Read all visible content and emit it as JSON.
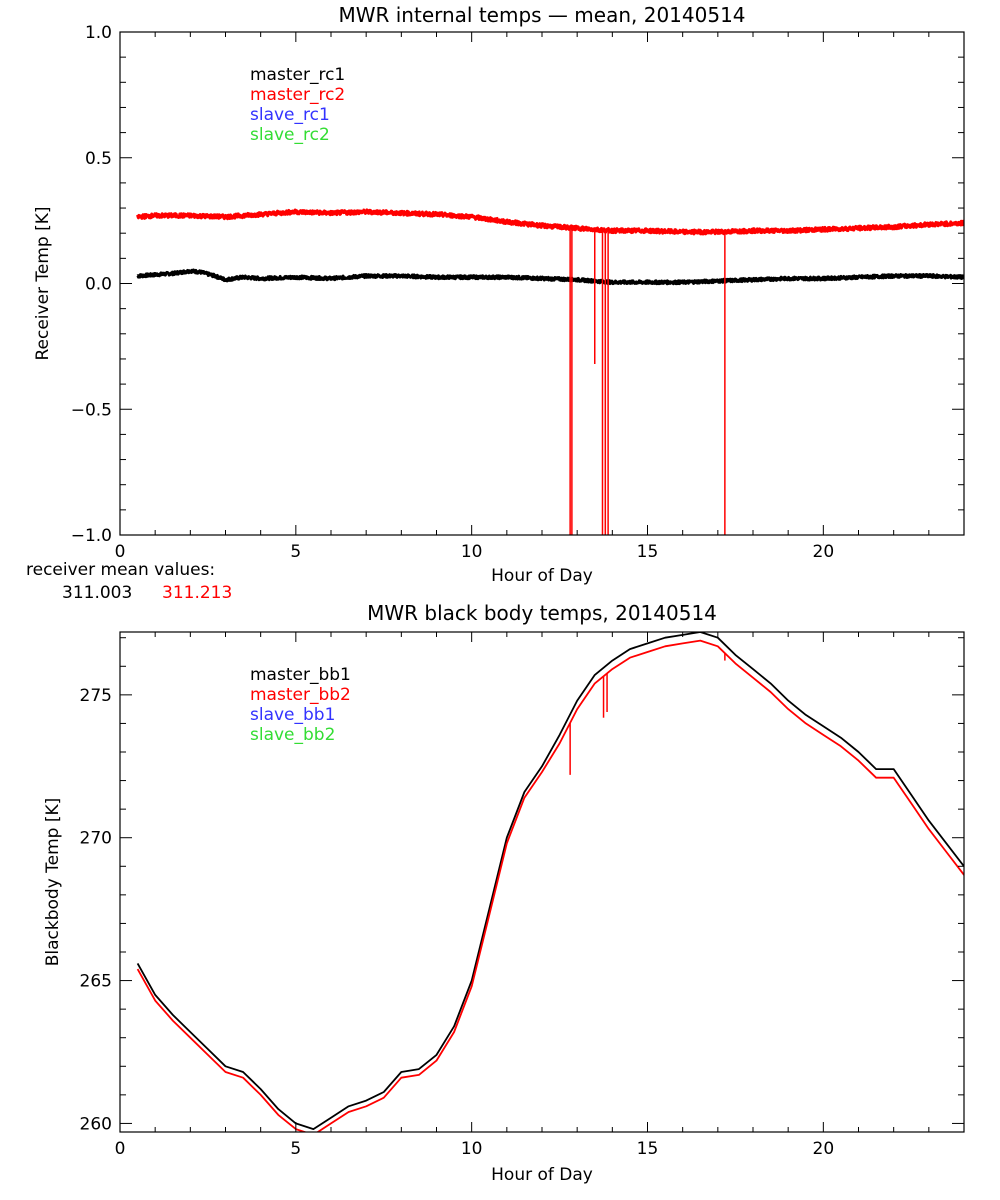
{
  "colors": {
    "black": "#000000",
    "red": "#ff0000",
    "blue": "#3333ff",
    "green": "#33dd33"
  },
  "receiver_note": {
    "label": "receiver mean values:",
    "values": [
      {
        "text": "311.003",
        "color": "#000000"
      },
      {
        "text": "311.213",
        "color": "#ff0000"
      }
    ]
  },
  "chart_data": [
    {
      "type": "line",
      "title": "MWR internal temps — mean, 20140514",
      "xlabel": "Hour of Day",
      "ylabel": "Receiver Temp [K]",
      "xlim": [
        0,
        24
      ],
      "ylim": [
        -1.0,
        1.0
      ],
      "x_ticks": [
        0,
        5,
        10,
        15,
        20
      ],
      "y_ticks": [
        -1.0,
        -0.5,
        0.0,
        0.5,
        1.0
      ],
      "y_tick_labels": [
        "−1.0",
        "−0.5",
        "0.0",
        "0.5",
        "1.0"
      ],
      "grid": false,
      "legend_position": "top-left",
      "legend": [
        {
          "label": "master_rc1",
          "color": "#000000"
        },
        {
          "label": "master_rc2",
          "color": "#ff0000"
        },
        {
          "label": "slave_rc1",
          "color": "#3333ff"
        },
        {
          "label": "slave_rc2",
          "color": "#33dd33"
        }
      ],
      "series": [
        {
          "name": "master_rc1",
          "color": "#000000",
          "x": [
            0.5,
            1.0,
            1.5,
            2.0,
            2.3,
            2.7,
            3.0,
            3.5,
            4.0,
            5.0,
            6.0,
            7.0,
            8.0,
            9.0,
            10.0,
            11.0,
            12.0,
            13.0,
            14.0,
            15.0,
            16.0,
            17.0,
            18.0,
            19.0,
            20.0,
            21.0,
            22.0,
            23.0,
            24.0
          ],
          "y": [
            0.03,
            0.035,
            0.04,
            0.05,
            0.045,
            0.03,
            0.015,
            0.025,
            0.02,
            0.025,
            0.02,
            0.03,
            0.03,
            0.025,
            0.025,
            0.025,
            0.02,
            0.015,
            0.005,
            0.005,
            0.005,
            0.01,
            0.015,
            0.02,
            0.02,
            0.025,
            0.03,
            0.03,
            0.025
          ],
          "noise": 0.006
        },
        {
          "name": "master_rc2",
          "color": "#ff0000",
          "x": [
            0.5,
            1.0,
            2.0,
            3.0,
            4.0,
            5.0,
            6.0,
            7.0,
            8.0,
            9.0,
            10.0,
            11.0,
            12.0,
            13.0,
            14.0,
            15.0,
            16.0,
            17.0,
            18.0,
            19.0,
            20.0,
            21.0,
            22.0,
            23.0,
            24.0
          ],
          "y": [
            0.265,
            0.27,
            0.27,
            0.265,
            0.275,
            0.285,
            0.28,
            0.285,
            0.28,
            0.275,
            0.265,
            0.245,
            0.23,
            0.22,
            0.21,
            0.21,
            0.205,
            0.205,
            0.21,
            0.21,
            0.215,
            0.22,
            0.225,
            0.235,
            0.24
          ],
          "noise": 0.008,
          "spikes": [
            {
              "x": 12.8,
              "y": -1.0
            },
            {
              "x": 12.85,
              "y": -1.0
            },
            {
              "x": 13.5,
              "y": -0.32
            },
            {
              "x": 13.72,
              "y": -1.0
            },
            {
              "x": 13.8,
              "y": -1.0
            },
            {
              "x": 13.88,
              "y": -1.0
            },
            {
              "x": 17.2,
              "y": -1.0
            }
          ]
        }
      ]
    },
    {
      "type": "line",
      "title": "MWR black body temps, 20140514",
      "xlabel": "Hour of Day",
      "ylabel": "Blackbody Temp [K]",
      "xlim": [
        0,
        24
      ],
      "ylim": [
        259.7,
        277.2
      ],
      "x_ticks": [
        0,
        5,
        10,
        15,
        20
      ],
      "y_ticks": [
        260,
        265,
        270,
        275
      ],
      "y_tick_labels": [
        "260",
        "265",
        "270",
        "275"
      ],
      "grid": false,
      "legend_position": "top-left",
      "legend": [
        {
          "label": "master_bb1",
          "color": "#000000"
        },
        {
          "label": "master_bb2",
          "color": "#ff0000"
        },
        {
          "label": "slave_bb1",
          "color": "#3333ff"
        },
        {
          "label": "slave_bb2",
          "color": "#33dd33"
        }
      ],
      "series": [
        {
          "name": "master_bb1",
          "color": "#000000",
          "x": [
            0.5,
            1.0,
            1.5,
            2.0,
            2.5,
            3.0,
            3.5,
            4.0,
            4.5,
            5.0,
            5.5,
            6.0,
            6.5,
            7.0,
            7.5,
            8.0,
            8.5,
            9.0,
            9.5,
            10.0,
            10.5,
            11.0,
            11.5,
            12.0,
            12.5,
            13.0,
            13.5,
            14.0,
            14.5,
            15.0,
            15.5,
            16.0,
            16.5,
            17.0,
            17.5,
            18.0,
            18.5,
            19.0,
            19.5,
            20.0,
            20.5,
            21.0,
            21.5,
            22.0,
            22.5,
            23.0,
            23.5,
            24.0
          ],
          "y": [
            265.6,
            264.5,
            263.8,
            263.2,
            262.6,
            262.0,
            261.8,
            261.2,
            260.5,
            260.0,
            259.8,
            260.2,
            260.6,
            260.8,
            261.1,
            261.8,
            261.9,
            262.4,
            263.4,
            265.0,
            267.5,
            270.0,
            271.6,
            272.5,
            273.6,
            274.8,
            275.7,
            276.2,
            276.6,
            276.8,
            277.0,
            277.1,
            277.2,
            277.0,
            276.4,
            275.9,
            275.4,
            274.8,
            274.3,
            273.9,
            273.5,
            273.0,
            272.4,
            272.4,
            271.5,
            270.6,
            269.8,
            269.0
          ]
        },
        {
          "name": "master_bb2",
          "color": "#ff0000",
          "x": [
            0.5,
            1.0,
            1.5,
            2.0,
            2.5,
            3.0,
            3.5,
            4.0,
            4.5,
            5.0,
            5.5,
            6.0,
            6.5,
            7.0,
            7.5,
            8.0,
            8.5,
            9.0,
            9.5,
            10.0,
            10.5,
            11.0,
            11.5,
            12.0,
            12.5,
            13.0,
            13.5,
            14.0,
            14.5,
            15.0,
            15.5,
            16.0,
            16.5,
            17.0,
            17.5,
            18.0,
            18.5,
            19.0,
            19.5,
            20.0,
            20.5,
            21.0,
            21.5,
            22.0,
            22.5,
            23.0,
            23.5,
            24.0
          ],
          "y": [
            265.4,
            264.3,
            263.6,
            263.0,
            262.4,
            261.8,
            261.6,
            261.0,
            260.3,
            259.8,
            259.6,
            260.0,
            260.4,
            260.6,
            260.9,
            261.6,
            261.7,
            262.2,
            263.2,
            264.8,
            267.3,
            269.8,
            271.4,
            272.3,
            273.3,
            274.5,
            275.4,
            275.9,
            276.3,
            276.5,
            276.7,
            276.8,
            276.9,
            276.7,
            276.1,
            275.6,
            275.1,
            274.5,
            274.0,
            273.6,
            273.2,
            272.7,
            272.1,
            272.1,
            271.2,
            270.3,
            269.5,
            268.7
          ],
          "spikes": [
            {
              "x": 12.8,
              "y": 272.2
            },
            {
              "x": 13.75,
              "y": 274.2
            },
            {
              "x": 13.85,
              "y": 274.4
            },
            {
              "x": 17.2,
              "y": 276.2
            }
          ]
        }
      ]
    }
  ]
}
